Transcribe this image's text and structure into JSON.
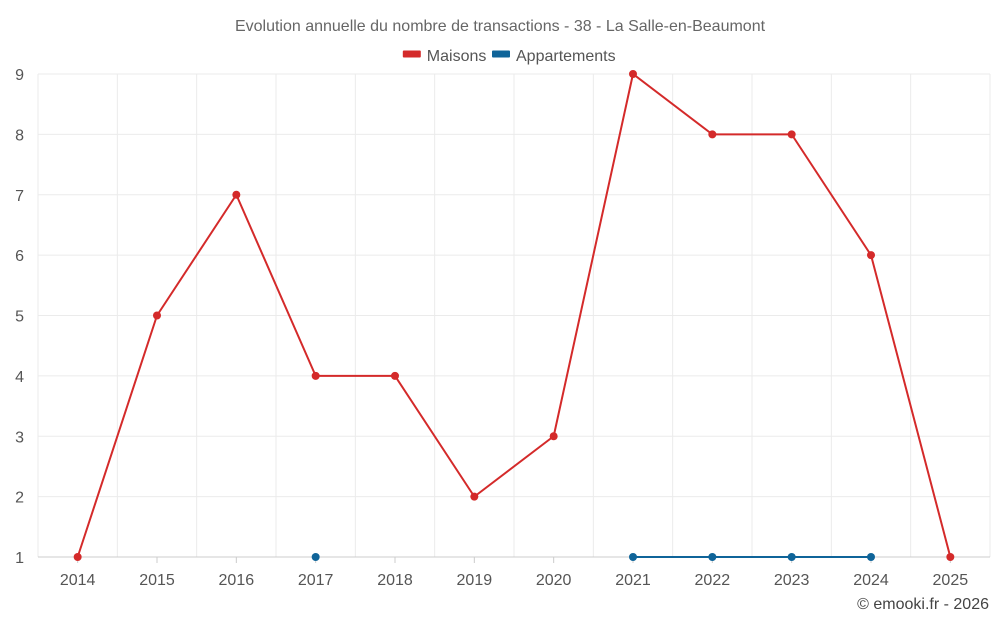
{
  "chart_data": {
    "type": "line",
    "title": "Evolution annuelle du nombre de transactions - 38 - La Salle-en-Beaumont",
    "xlabel": "",
    "ylabel": "",
    "categories": [
      "2014",
      "2015",
      "2016",
      "2017",
      "2018",
      "2019",
      "2020",
      "2021",
      "2022",
      "2023",
      "2024",
      "2025"
    ],
    "ylim": [
      1,
      9
    ],
    "yticks": [
      1,
      2,
      3,
      4,
      5,
      6,
      7,
      8,
      9
    ],
    "grid": true,
    "legend_position": "top-center",
    "series": [
      {
        "name": "Maisons",
        "color": "#d42a2a",
        "values": [
          1,
          5,
          7,
          4,
          4,
          2,
          3,
          9,
          8,
          8,
          6,
          1
        ]
      },
      {
        "name": "Appartements",
        "color": "#0f6499",
        "values": [
          null,
          null,
          null,
          1,
          null,
          null,
          null,
          1,
          1,
          1,
          1,
          null
        ]
      }
    ]
  },
  "credit": "© emooki.fr - 2026"
}
